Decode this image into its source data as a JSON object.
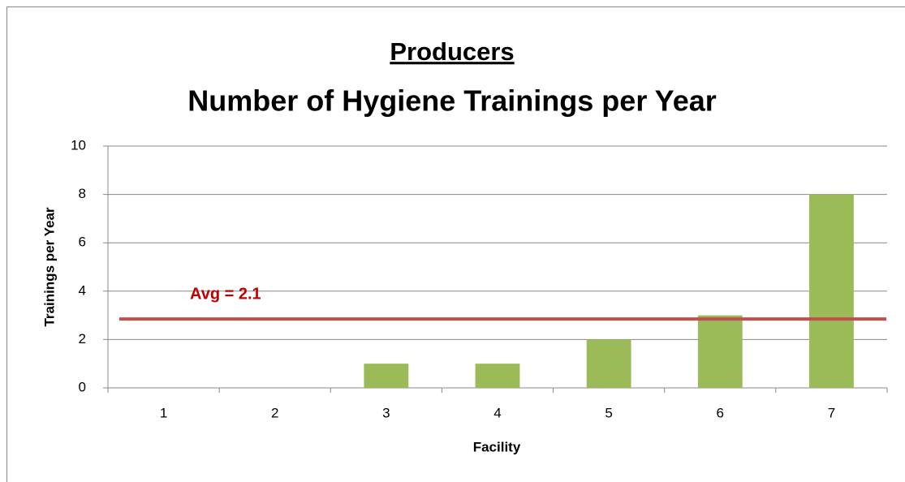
{
  "chart_data": {
    "type": "bar",
    "title": "Producers",
    "subtitle": "Number of Hygiene Trainings per Year",
    "x_label": "Facility",
    "y_label": "Trainings per Year",
    "categories": [
      "1",
      "2",
      "3",
      "4",
      "5",
      "6",
      "7"
    ],
    "values": [
      0,
      0,
      1,
      1,
      2,
      3,
      8
    ],
    "color": "#9bbb59",
    "ylim": [
      0,
      10
    ],
    "yticks": [
      0,
      2,
      4,
      6,
      8,
      10
    ],
    "grid": true,
    "reference_line": {
      "value": 2.85,
      "color": "#c0504d"
    },
    "annotations": [
      "Avg = 2.1"
    ]
  }
}
